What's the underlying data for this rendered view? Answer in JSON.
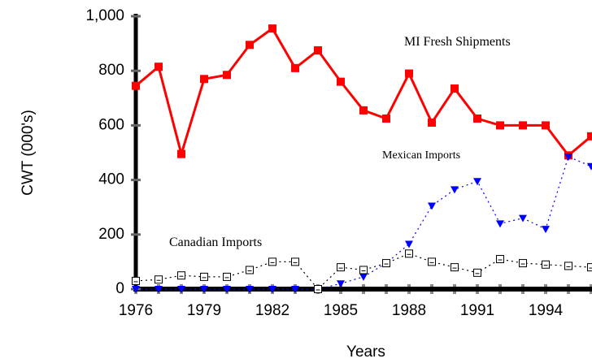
{
  "chart_data": {
    "type": "line",
    "x_label": "Years",
    "y_label": "CWT (000's)",
    "x": [
      1976,
      1977,
      1978,
      1979,
      1980,
      1981,
      1982,
      1983,
      1984,
      1985,
      1986,
      1987,
      1988,
      1989,
      1990,
      1991,
      1992,
      1993,
      1994,
      1995,
      1996
    ],
    "xlim": [
      1976,
      1996
    ],
    "xticks": [
      1976,
      1979,
      1982,
      1985,
      1988,
      1991,
      1994
    ],
    "ylim": [
      0,
      1000
    ],
    "yticks": [
      0,
      200,
      400,
      600,
      800,
      {
        "value": 1000,
        "label": "1,000"
      }
    ],
    "series": [
      {
        "name": "MI Fresh Shipments",
        "color": "#ff0000",
        "marker": "square",
        "dash": false,
        "values": [
          745,
          815,
          495,
          770,
          785,
          895,
          955,
          810,
          875,
          760,
          655,
          625,
          790,
          610,
          735,
          625,
          600,
          600,
          600,
          490,
          560
        ]
      },
      {
        "name": "Mexican Imports",
        "color": "#0000ff",
        "marker": "triangle",
        "dash": true,
        "values": [
          0,
          0,
          0,
          0,
          0,
          0,
          0,
          0,
          0,
          20,
          45,
          95,
          165,
          305,
          365,
          395,
          240,
          260,
          220,
          485,
          450
        ]
      },
      {
        "name": "Canadian Imports",
        "color": "#000000",
        "marker": "open-square",
        "dash": true,
        "values": [
          30,
          35,
          50,
          45,
          45,
          70,
          100,
          100,
          0,
          80,
          70,
          95,
          130,
          100,
          80,
          60,
          110,
          95,
          90,
          85,
          80
        ]
      }
    ]
  }
}
